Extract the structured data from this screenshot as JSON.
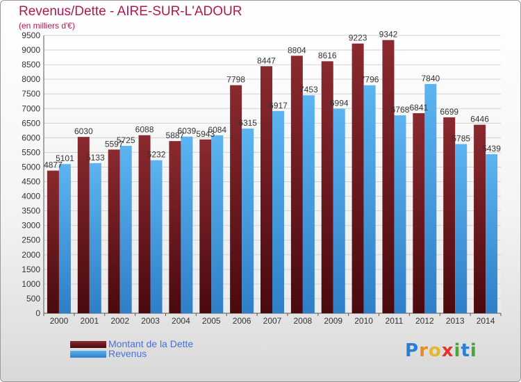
{
  "header": {
    "title": "Revenus/Dette - AIRE-SUR-L'ADOUR",
    "subtitle": "(en milliers d'€)"
  },
  "chart_data": {
    "type": "bar",
    "title": "Revenus/Dette - AIRE-SUR-L'ADOUR",
    "subtitle": "(en milliers d'€)",
    "categories": [
      "2000",
      "2001",
      "2002",
      "2003",
      "2004",
      "2005",
      "2006",
      "2007",
      "2008",
      "2009",
      "2010",
      "2011",
      "2012",
      "2013",
      "2014"
    ],
    "series": [
      {
        "name": "Montant de la Dette",
        "color": "#7a1e24",
        "values": [
          4877,
          6030,
          5597,
          6088,
          5887,
          5943,
          7798,
          8447,
          8804,
          8616,
          9223,
          9342,
          6841,
          6699,
          6446
        ],
        "labels": [
          "4877",
          "6030",
          "5597",
          "6088",
          "5887",
          "5943",
          "7798",
          "8447",
          "8804",
          "8616",
          "9223",
          "9342",
          "6841",
          "6699",
          "6446"
        ]
      },
      {
        "name": "Revenus",
        "color": "#4aa3e6",
        "values": [
          5101,
          5133,
          5725,
          5232,
          6039,
          6084,
          6315,
          6917,
          7453,
          6994,
          7796,
          6768,
          7840,
          5785,
          5439
        ],
        "labels": [
          "5101",
          "5133",
          "5725",
          "5232",
          "6039",
          "6084",
          "6315",
          "6917",
          "7453",
          "6994",
          "7796",
          "6768",
          "7840",
          "5785",
          "5439"
        ]
      }
    ],
    "ylim": [
      0,
      9500
    ],
    "yticks": [
      0,
      500,
      1000,
      1500,
      2000,
      2500,
      3000,
      3500,
      4000,
      4500,
      5000,
      5500,
      6000,
      6500,
      7000,
      7500,
      8000,
      8500,
      9000,
      9500
    ],
    "xlabel": "",
    "ylabel": "",
    "grid": true,
    "legend_position": "bottom-left"
  },
  "legend": [
    {
      "label": "Montant de la Dette",
      "color": "#7a1e24"
    },
    {
      "label": "Revenus",
      "color": "#4aa3e6"
    }
  ],
  "logo": {
    "letters": [
      "P",
      "r",
      "o",
      "x",
      "i",
      "t",
      "i"
    ]
  }
}
